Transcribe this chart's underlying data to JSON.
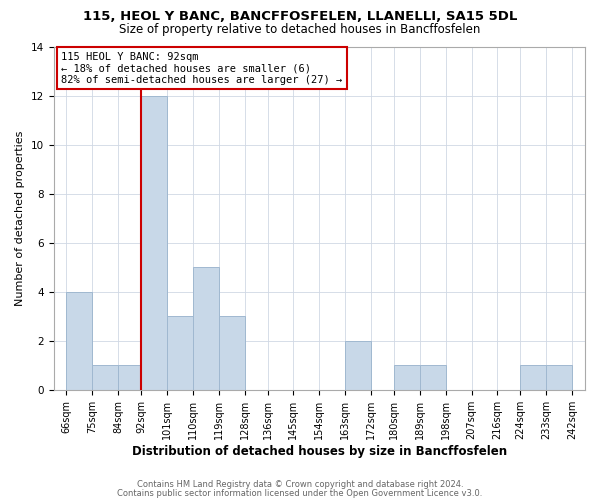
{
  "title1": "115, HEOL Y BANC, BANCFFOSFELEN, LLANELLI, SA15 5DL",
  "title2": "Size of property relative to detached houses in Bancffosfelen",
  "xlabel": "Distribution of detached houses by size in Bancffosfelen",
  "ylabel": "Number of detached properties",
  "bins": [
    66,
    75,
    84,
    92,
    101,
    110,
    119,
    128,
    136,
    145,
    154,
    163,
    172,
    180,
    189,
    198,
    207,
    216,
    224,
    233,
    242
  ],
  "counts": [
    4,
    1,
    1,
    12,
    3,
    5,
    3,
    0,
    0,
    0,
    0,
    2,
    0,
    1,
    1,
    0,
    0,
    0,
    1,
    1
  ],
  "tick_labels": [
    "66sqm",
    "75sqm",
    "84sqm",
    "92sqm",
    "101sqm",
    "110sqm",
    "119sqm",
    "128sqm",
    "136sqm",
    "145sqm",
    "154sqm",
    "163sqm",
    "172sqm",
    "180sqm",
    "189sqm",
    "198sqm",
    "207sqm",
    "216sqm",
    "224sqm",
    "233sqm",
    "242sqm"
  ],
  "bar_color": "#c8d8e8",
  "bar_edge_color": "#a0b8d0",
  "vline_x": 92,
  "vline_color": "#cc0000",
  "annotation_line1": "115 HEOL Y BANC: 92sqm",
  "annotation_line2": "← 18% of detached houses are smaller (6)",
  "annotation_line3": "82% of semi-detached houses are larger (27) →",
  "annotation_box_color": "#cc0000",
  "ylim": [
    0,
    14
  ],
  "yticks": [
    0,
    2,
    4,
    6,
    8,
    10,
    12,
    14
  ],
  "footer1": "Contains HM Land Registry data © Crown copyright and database right 2024.",
  "footer2": "Contains public sector information licensed under the Open Government Licence v3.0.",
  "bg_color": "#ffffff",
  "plot_bg_color": "#ffffff",
  "grid_color": "#d0d8e4",
  "title1_fontsize": 9.5,
  "title2_fontsize": 8.5,
  "xlabel_fontsize": 8.5,
  "ylabel_fontsize": 8.0,
  "tick_fontsize": 7.0,
  "annotation_fontsize": 7.5,
  "footer_fontsize": 6.0
}
